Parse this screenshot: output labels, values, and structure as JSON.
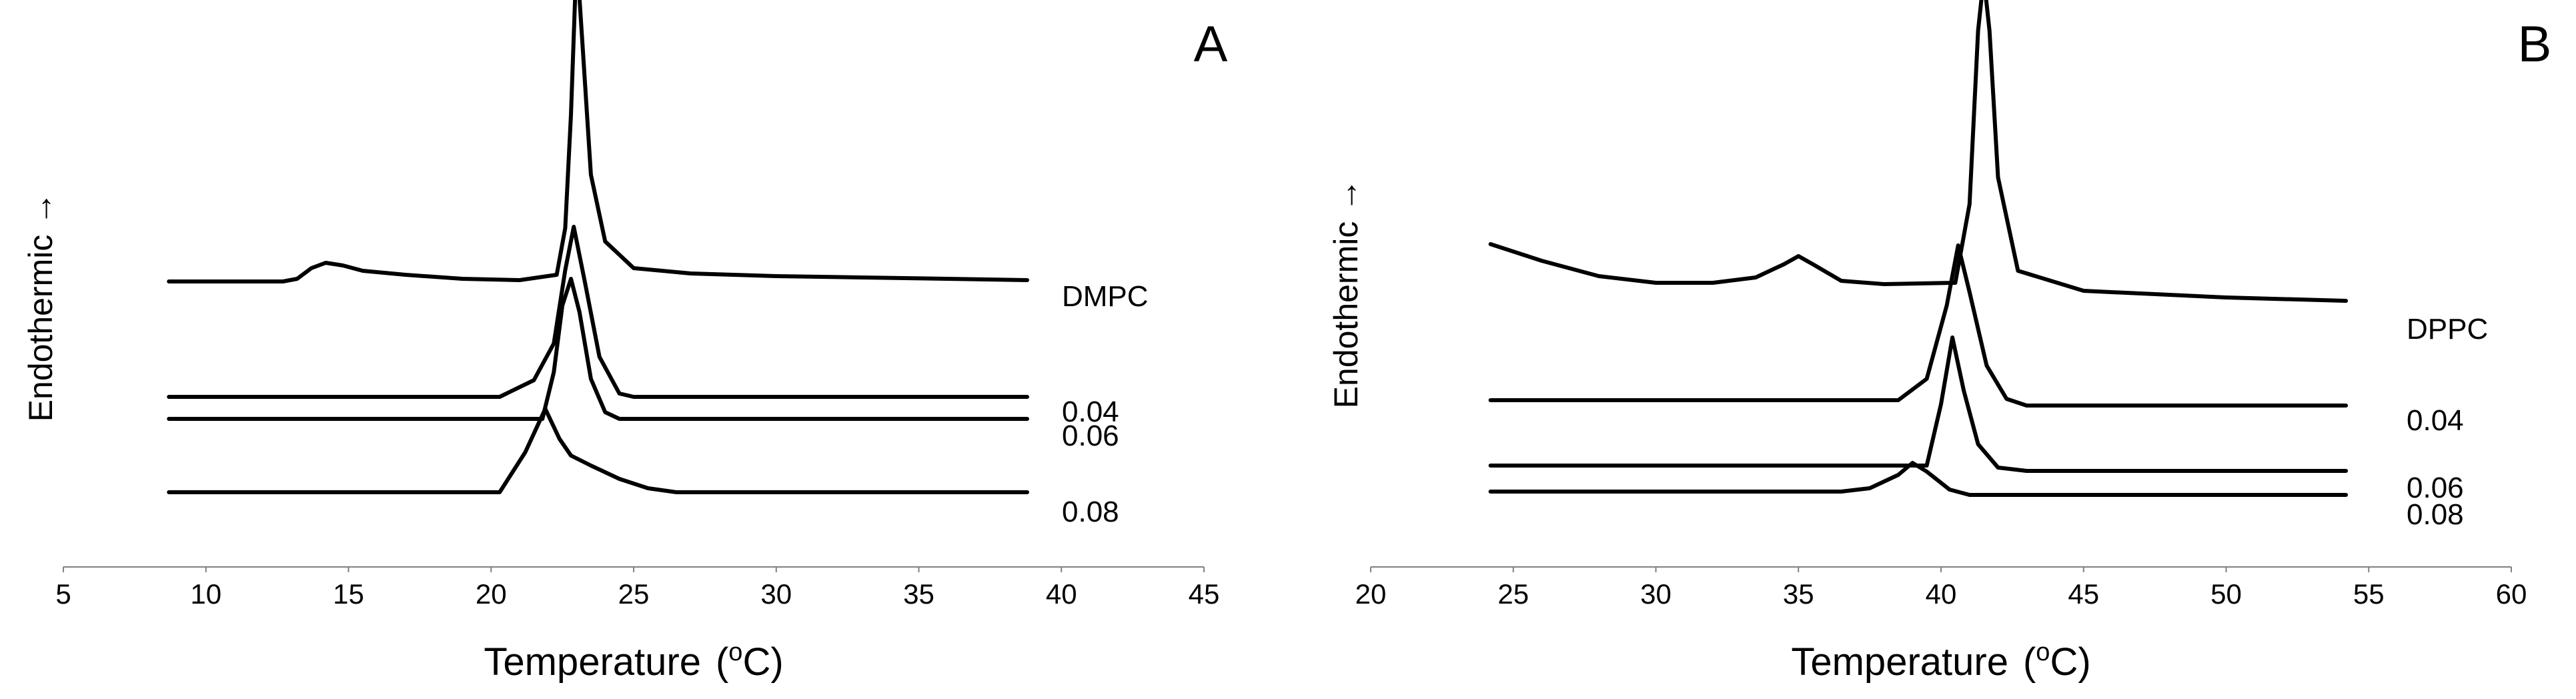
{
  "chart_data": [
    {
      "type": "line",
      "panel_label": "A",
      "xlabel_main": "Temperature",
      "xlabel_paren_open": "(",
      "xlabel_sup_base": "o",
      "xlabel_unit": "C)",
      "ylabel": "Endothermic",
      "ylabel_arrow": "→",
      "xlim": [
        5,
        45
      ],
      "xticks": [
        5,
        10,
        15,
        20,
        25,
        30,
        35,
        40,
        45
      ],
      "series": [
        {
          "name": "DMPC",
          "baseline": 600,
          "points": [
            [
              8.7,
              0
            ],
            [
              12.7,
              0
            ],
            [
              13.2,
              4
            ],
            [
              13.7,
              20
            ],
            [
              14.2,
              28
            ],
            [
              14.8,
              24
            ],
            [
              15.5,
              16
            ],
            [
              17,
              10
            ],
            [
              19,
              4
            ],
            [
              21,
              2
            ],
            [
              22.3,
              10
            ],
            [
              22.6,
              80
            ],
            [
              22.8,
              250
            ],
            [
              23.0,
              490
            ],
            [
              23.2,
              360
            ],
            [
              23.5,
              160
            ],
            [
              24,
              60
            ],
            [
              25,
              20
            ],
            [
              27,
              12
            ],
            [
              30,
              8
            ],
            [
              33,
              6
            ],
            [
              36,
              4
            ],
            [
              38.8,
              2
            ]
          ]
        },
        {
          "name": "0.04",
          "baseline": 315,
          "points": [
            [
              8.7,
              0
            ],
            [
              20.3,
              0
            ],
            [
              21.5,
              25
            ],
            [
              22.2,
              80
            ],
            [
              22.6,
              190
            ],
            [
              22.9,
              255
            ],
            [
              23.3,
              170
            ],
            [
              23.8,
              60
            ],
            [
              24.5,
              5
            ],
            [
              25,
              0
            ],
            [
              38.8,
              0
            ]
          ]
        },
        {
          "name": "0.06",
          "baseline": 270,
          "points": [
            [
              8.7,
              0
            ],
            [
              21.8,
              0
            ],
            [
              22.2,
              70
            ],
            [
              22.5,
              170
            ],
            [
              22.8,
              210
            ],
            [
              23.1,
              160
            ],
            [
              23.5,
              60
            ],
            [
              24,
              10
            ],
            [
              24.5,
              0
            ],
            [
              38.8,
              0
            ]
          ]
        },
        {
          "name": "0.08",
          "baseline": 120,
          "points": [
            [
              8.7,
              0
            ],
            [
              20.3,
              0
            ],
            [
              21.2,
              60
            ],
            [
              21.9,
              125
            ],
            [
              22.4,
              80
            ],
            [
              22.8,
              55
            ],
            [
              23.5,
              40
            ],
            [
              24.5,
              20
            ],
            [
              25.5,
              6
            ],
            [
              26.5,
              0
            ],
            [
              38.8,
              0
            ]
          ]
        }
      ]
    },
    {
      "type": "line",
      "panel_label": "B",
      "xlabel_main": "Temperature",
      "xlabel_paren_open": "(",
      "xlabel_sup_base": "o",
      "xlabel_unit": "C)",
      "ylabel": "Endothermic",
      "ylabel_arrow": "→",
      "xlim": [
        20,
        60
      ],
      "xticks": [
        20,
        25,
        30,
        35,
        40,
        45,
        50,
        55,
        60
      ],
      "series": [
        {
          "name": "DPPC",
          "baseline": 520,
          "points": [
            [
              24.2,
              100
            ],
            [
              26,
              75
            ],
            [
              28,
              52
            ],
            [
              30,
              42
            ],
            [
              32,
              42
            ],
            [
              33.5,
              50
            ],
            [
              34.5,
              70
            ],
            [
              35,
              82
            ],
            [
              35.5,
              70
            ],
            [
              36.5,
              45
            ],
            [
              38,
              40
            ],
            [
              40.5,
              42
            ],
            [
              41.0,
              160
            ],
            [
              41.3,
              420
            ],
            [
              41.5,
              500
            ],
            [
              41.7,
              420
            ],
            [
              42.0,
              200
            ],
            [
              42.7,
              60
            ],
            [
              45,
              30
            ],
            [
              50,
              20
            ],
            [
              54.2,
              15
            ]
          ]
        },
        {
          "name": "0.04",
          "baseline": 312,
          "points": [
            [
              24.2,
              8
            ],
            [
              38.5,
              8
            ],
            [
              39.5,
              40
            ],
            [
              40.2,
              150
            ],
            [
              40.6,
              240
            ],
            [
              41.0,
              170
            ],
            [
              41.6,
              60
            ],
            [
              42.3,
              10
            ],
            [
              43,
              0
            ],
            [
              54.2,
              0
            ]
          ]
        },
        {
          "name": "0.06",
          "baseline": 225,
          "points": [
            [
              24.2,
              8
            ],
            [
              39.5,
              8
            ],
            [
              40.0,
              100
            ],
            [
              40.4,
              200
            ],
            [
              40.8,
              120
            ],
            [
              41.3,
              40
            ],
            [
              42,
              5
            ],
            [
              43,
              0
            ],
            [
              54.2,
              0
            ]
          ]
        },
        {
          "name": "0.08",
          "baseline": 190,
          "points": [
            [
              24.2,
              5
            ],
            [
              36.5,
              5
            ],
            [
              37.5,
              10
            ],
            [
              38.5,
              30
            ],
            [
              39.0,
              48
            ],
            [
              39.5,
              35
            ],
            [
              40.3,
              8
            ],
            [
              41,
              0
            ],
            [
              54.2,
              0
            ]
          ]
        }
      ]
    }
  ]
}
